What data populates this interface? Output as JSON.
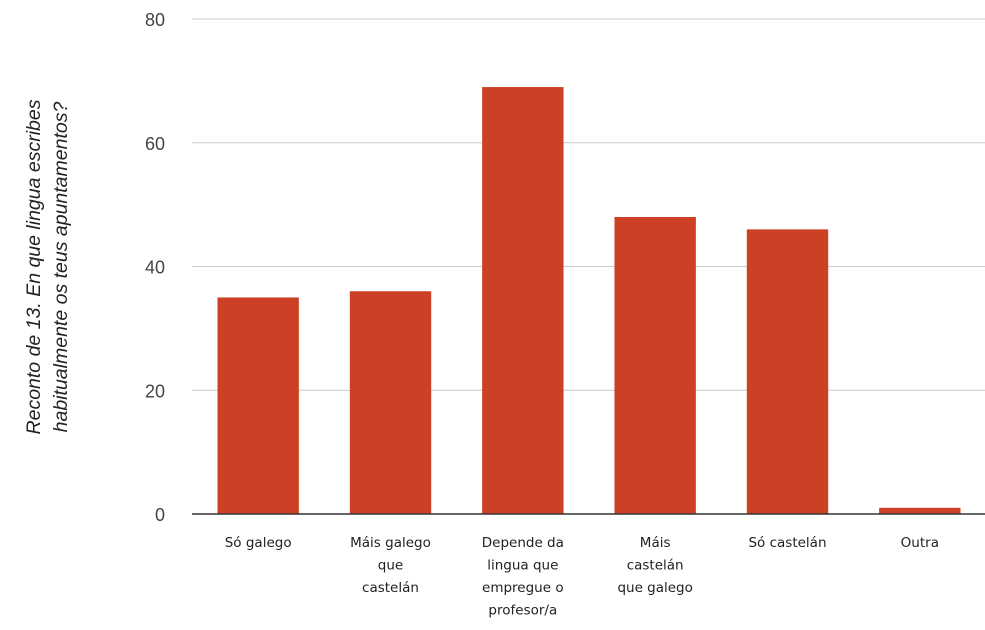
{
  "chart_data": {
    "type": "bar",
    "title": "",
    "xlabel": "",
    "ylabel": [
      "Reconto de 13. En que lingua escribes",
      "habitualmente os teus apuntamentos?"
    ],
    "categories": [
      [
        "Só galego"
      ],
      [
        "Máis galego",
        "que",
        "castelán"
      ],
      [
        "Depende da",
        "lingua que",
        "empregue o",
        "profesor/a"
      ],
      [
        "Máis",
        "castelán",
        "que galego"
      ],
      [
        "Só castelán"
      ],
      [
        "Outra"
      ]
    ],
    "values": [
      35,
      36,
      69,
      48,
      46,
      1
    ],
    "ylim": [
      0,
      80
    ],
    "yticks": [
      0,
      20,
      40,
      60,
      80
    ],
    "grid": true,
    "legend": "none",
    "colors": {
      "bar": "#cc4125",
      "grid": "#cccccc",
      "baseline": "#333333"
    }
  }
}
